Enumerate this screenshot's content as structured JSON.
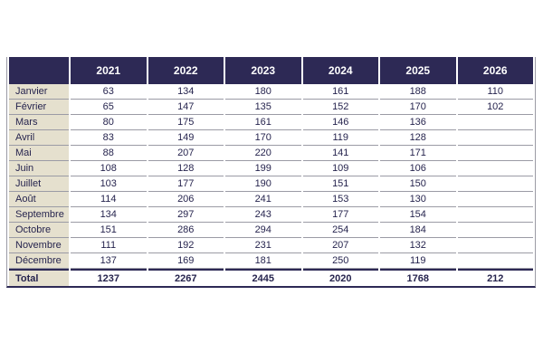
{
  "chart_data": {
    "type": "table",
    "title": "",
    "columns": [
      "",
      "2021",
      "2022",
      "2023",
      "2024",
      "2025",
      "2026"
    ],
    "rows": [
      {
        "label": "Janvier",
        "values": [
          63,
          134,
          180,
          161,
          188,
          110
        ]
      },
      {
        "label": "Février",
        "values": [
          65,
          147,
          135,
          152,
          170,
          102
        ]
      },
      {
        "label": "Mars",
        "values": [
          80,
          175,
          161,
          146,
          136,
          null
        ]
      },
      {
        "label": "Avril",
        "values": [
          83,
          149,
          170,
          119,
          128,
          null
        ]
      },
      {
        "label": "Mai",
        "values": [
          88,
          207,
          220,
          141,
          171,
          null
        ]
      },
      {
        "label": "Juin",
        "values": [
          108,
          128,
          199,
          109,
          106,
          null
        ]
      },
      {
        "label": "Juillet",
        "values": [
          103,
          177,
          190,
          151,
          150,
          null
        ]
      },
      {
        "label": "Août",
        "values": [
          114,
          206,
          241,
          153,
          130,
          null
        ]
      },
      {
        "label": "Septembre",
        "values": [
          134,
          297,
          243,
          177,
          154,
          null
        ]
      },
      {
        "label": "Octobre",
        "values": [
          151,
          286,
          294,
          254,
          184,
          null
        ]
      },
      {
        "label": "Novembre",
        "values": [
          111,
          192,
          231,
          207,
          132,
          null
        ]
      },
      {
        "label": "Décembre",
        "values": [
          137,
          169,
          181,
          250,
          119,
          null
        ]
      }
    ],
    "total_row": {
      "label": "Total",
      "values": [
        1237,
        2267,
        2445,
        2020,
        1768,
        212
      ]
    }
  },
  "colors": {
    "page_bg": "#ffffff",
    "header_bg": "#2d2955",
    "header_text": "#ffffff",
    "month_col_bg": "#e5e0ce",
    "body_text": "#26244e",
    "row_border": "#9b9ba5",
    "total_border": "#2d2955"
  }
}
